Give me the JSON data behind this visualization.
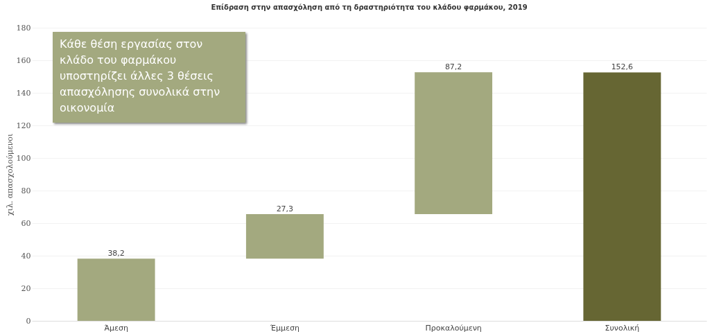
{
  "chart_data": {
    "type": "bar",
    "title": "Επίδραση στην απασχόληση από τη δραστηριότητα του κλάδου φαρμάκου, 2019",
    "ylabel": "χιλ. απασχολούμενοι",
    "categories": [
      "Άμεση",
      "Έμμεση",
      "Προκαλούμενη",
      "Συνολική"
    ],
    "values": [
      38.2,
      27.3,
      87.2,
      152.6
    ],
    "base": [
      0,
      38.2,
      65.5,
      0
    ],
    "colors": [
      "#a3a97f",
      "#a3a97f",
      "#a3a97f",
      "#666633"
    ],
    "value_labels": [
      "38,2",
      "27,3",
      "87,2",
      "152,6"
    ],
    "ylim": [
      0,
      180
    ],
    "yticks": [
      0,
      20,
      40,
      60,
      80,
      100,
      120,
      140,
      160,
      180
    ],
    "grid": "y",
    "annotations": [
      "Κάθε θέση εργασίας στον κλάδο του φαρμάκου υποστηρίζει άλλες 3 θέσεις απασχόλησης συνολικά στην οικονομία"
    ]
  }
}
